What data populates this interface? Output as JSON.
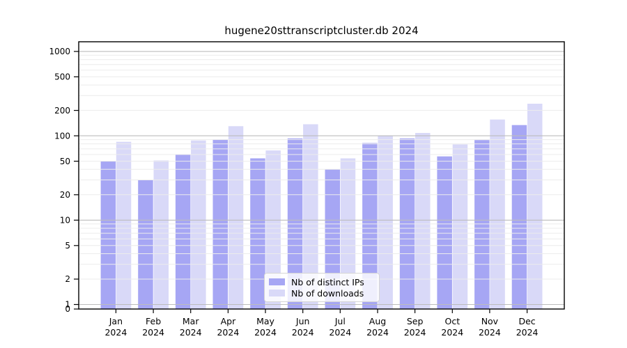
{
  "chart_data": {
    "type": "bar",
    "title": "hugene20sttranscriptcluster.db 2024",
    "categories": [
      "Jan 2024",
      "Feb 2024",
      "Mar 2024",
      "Apr 2024",
      "May 2024",
      "Jun 2024",
      "Jul 2024",
      "Aug 2024",
      "Sep 2024",
      "Oct 2024",
      "Nov 2024",
      "Dec 2024"
    ],
    "series": [
      {
        "name": "Nb of distinct IPs",
        "color": "#a6a6f4",
        "values": [
          50,
          30,
          60,
          90,
          54,
          93,
          40,
          82,
          93,
          57,
          89,
          134
        ]
      },
      {
        "name": "Nb of downloads",
        "color": "#d9d9f8",
        "values": [
          85,
          51,
          88,
          130,
          67,
          137,
          54,
          100,
          108,
          79,
          156,
          240
        ]
      }
    ],
    "yscale": "log",
    "yticks": [
      0,
      1,
      2,
      5,
      10,
      20,
      50,
      100,
      200,
      500,
      1000
    ],
    "ylim": [
      0,
      1000
    ],
    "xlabel": "",
    "ylabel": "",
    "grid": "both",
    "grid_above_bars": true,
    "legend_position": "bottom-center",
    "colors": {
      "major_grid": "#bcbcbc",
      "minor_grid": "#ececec",
      "frame": "#000000",
      "tick_text": "#000000"
    }
  }
}
